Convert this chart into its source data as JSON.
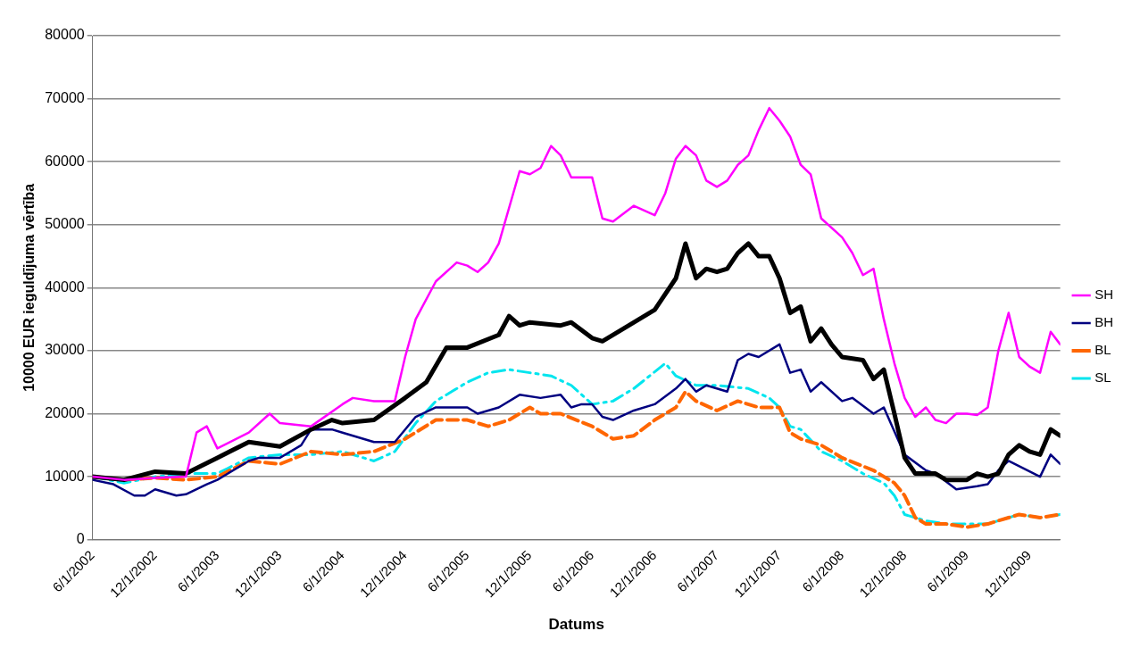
{
  "chart_data": {
    "type": "line",
    "xlabel": "Datums",
    "ylabel": "10000 EUR ieguldījuma vērtība",
    "xlim": [
      "2002-06-01",
      "2010-03-01"
    ],
    "ylim": [
      0,
      80000
    ],
    "yticks": [
      0,
      10000,
      20000,
      30000,
      40000,
      50000,
      60000,
      70000,
      80000
    ],
    "xticks": [
      {
        "value": "2002-06-01",
        "label": "6/1/2002"
      },
      {
        "value": "2002-12-01",
        "label": "12/1/2002"
      },
      {
        "value": "2003-06-01",
        "label": "6/1/2003"
      },
      {
        "value": "2003-12-01",
        "label": "12/1/2003"
      },
      {
        "value": "2004-06-01",
        "label": "6/1/2004"
      },
      {
        "value": "2004-12-01",
        "label": "12/1/2004"
      },
      {
        "value": "2005-06-01",
        "label": "6/1/2005"
      },
      {
        "value": "2005-12-01",
        "label": "12/1/2005"
      },
      {
        "value": "2006-06-01",
        "label": "6/1/2006"
      },
      {
        "value": "2006-12-01",
        "label": "12/1/2006"
      },
      {
        "value": "2007-06-01",
        "label": "6/1/2007"
      },
      {
        "value": "2007-12-01",
        "label": "12/1/2007"
      },
      {
        "value": "2008-06-01",
        "label": "6/1/2008"
      },
      {
        "value": "2008-12-01",
        "label": "12/1/2008"
      },
      {
        "value": "2009-06-01",
        "label": "6/1/2009"
      },
      {
        "value": "2009-12-01",
        "label": "12/1/2009"
      }
    ],
    "grid": "y",
    "legend": "right",
    "marker": "none",
    "series": [
      {
        "name": "SH",
        "color": "#ff00ff",
        "line_style": "solid",
        "x": [
          "2002-06",
          "2002-09",
          "2002-12",
          "2003-03",
          "2003-04",
          "2003-05",
          "2003-06",
          "2003-09",
          "2003-11",
          "2003-12",
          "2004-03",
          "2004-06",
          "2004-07",
          "2004-09",
          "2004-11",
          "2004-12",
          "2005-01",
          "2005-03",
          "2005-05",
          "2005-06",
          "2005-07",
          "2005-08",
          "2005-09",
          "2005-11",
          "2005-12",
          "2006-01",
          "2006-02",
          "2006-03",
          "2006-04",
          "2006-06",
          "2006-07",
          "2006-08",
          "2006-10",
          "2006-12",
          "2007-01",
          "2007-02",
          "2007-03",
          "2007-04",
          "2007-05",
          "2007-06",
          "2007-07",
          "2007-08",
          "2007-09",
          "2007-10",
          "2007-11",
          "2007-12",
          "2008-01",
          "2008-02",
          "2008-03",
          "2008-04",
          "2008-06",
          "2008-07",
          "2008-08",
          "2008-09",
          "2008-10",
          "2008-11",
          "2008-12",
          "2009-01",
          "2009-02",
          "2009-03",
          "2009-04",
          "2009-05",
          "2009-06",
          "2009-07",
          "2009-08",
          "2009-09",
          "2009-10",
          "2009-11",
          "2009-12",
          "2010-01",
          "2010-02",
          "2010-03"
        ],
        "values": [
          10000,
          9500,
          9800,
          10000,
          17000,
          18000,
          14500,
          17000,
          20000,
          18500,
          18000,
          21500,
          22500,
          22000,
          22000,
          29000,
          35000,
          41000,
          44000,
          43500,
          42500,
          44000,
          47000,
          58500,
          58000,
          59000,
          62500,
          61000,
          57500,
          57500,
          51000,
          50500,
          53000,
          51500,
          55000,
          60500,
          62500,
          61000,
          57000,
          56000,
          57000,
          59500,
          61000,
          65000,
          68500,
          66500,
          64000,
          59500,
          58000,
          51000,
          48000,
          45500,
          42000,
          43000,
          35000,
          28000,
          22500,
          19500,
          21000,
          19000,
          18500,
          20000,
          20000,
          19800,
          21000,
          30000,
          36000,
          29000,
          27500,
          26500,
          33000,
          31000
        ]
      },
      {
        "color": "#000000",
        "line_style": "solid",
        "x": [
          "2002-06",
          "2002-09",
          "2002-12",
          "2003-03",
          "2003-06",
          "2003-09",
          "2003-12",
          "2004-03",
          "2004-05",
          "2004-06",
          "2004-09",
          "2004-12",
          "2005-02",
          "2005-04",
          "2005-06",
          "2005-09",
          "2005-10",
          "2005-11",
          "2005-12",
          "2006-03",
          "2006-04",
          "2006-06",
          "2006-07",
          "2006-09",
          "2006-12",
          "2007-02",
          "2007-03",
          "2007-04",
          "2007-05",
          "2007-06",
          "2007-07",
          "2007-08",
          "2007-09",
          "2007-10",
          "2007-11",
          "2007-12",
          "2008-01",
          "2008-02",
          "2008-03",
          "2008-04",
          "2008-05",
          "2008-06",
          "2008-08",
          "2008-09",
          "2008-10",
          "2008-11",
          "2008-12",
          "2009-01",
          "2009-03",
          "2009-04",
          "2009-06",
          "2009-07",
          "2009-08",
          "2009-09",
          "2009-10",
          "2009-11",
          "2009-12",
          "2010-01",
          "2010-02",
          "2010-03"
        ],
        "values": [
          10000,
          9500,
          10800,
          10500,
          13000,
          15500,
          14800,
          17500,
          19000,
          18500,
          19000,
          22500,
          25000,
          30500,
          30500,
          32500,
          35500,
          34000,
          34500,
          34000,
          34500,
          32000,
          31500,
          33500,
          36500,
          41500,
          47000,
          41500,
          43000,
          42500,
          43000,
          45500,
          47000,
          45000,
          45000,
          41500,
          36000,
          37000,
          31500,
          33500,
          31000,
          29000,
          28500,
          25500,
          27000,
          20000,
          13000,
          10500,
          10500,
          9500,
          9500,
          10500,
          10000,
          10500,
          13500,
          15000,
          14000,
          13500,
          17500,
          16500
        ]
      },
      {
        "name": "BH",
        "color": "#000080",
        "line_style": "solid",
        "x": [
          "2002-06",
          "2002-08",
          "2002-10",
          "2002-11",
          "2002-12",
          "2003-02",
          "2003-03",
          "2003-05",
          "2003-06",
          "2003-09",
          "2003-10",
          "2003-12",
          "2004-02",
          "2004-03",
          "2004-05",
          "2004-06",
          "2004-09",
          "2004-11",
          "2005-01",
          "2005-03",
          "2005-05",
          "2005-06",
          "2005-07",
          "2005-09",
          "2005-11",
          "2006-01",
          "2006-03",
          "2006-04",
          "2006-05",
          "2006-06",
          "2006-07",
          "2006-08",
          "2006-10",
          "2006-12",
          "2007-02",
          "2007-03",
          "2007-04",
          "2007-05",
          "2007-07",
          "2007-08",
          "2007-09",
          "2007-10",
          "2007-12",
          "2008-01",
          "2008-02",
          "2008-03",
          "2008-04",
          "2008-06",
          "2008-07",
          "2008-09",
          "2008-10",
          "2008-12",
          "2009-02",
          "2009-03",
          "2009-05",
          "2009-07",
          "2009-08",
          "2009-09",
          "2009-10",
          "2010-01",
          "2010-02",
          "2010-03"
        ],
        "values": [
          9500,
          8800,
          7000,
          7000,
          8000,
          7000,
          7200,
          8800,
          9500,
          12500,
          13000,
          13000,
          15000,
          17500,
          17500,
          17000,
          15500,
          15500,
          19500,
          21000,
          21000,
          21000,
          20000,
          21000,
          23000,
          22500,
          23000,
          21000,
          21500,
          21500,
          19500,
          19000,
          20500,
          21500,
          24000,
          25500,
          23500,
          24500,
          23500,
          28500,
          29500,
          29000,
          31000,
          26500,
          27000,
          23500,
          25000,
          22000,
          22500,
          20000,
          21000,
          13500,
          11000,
          10500,
          8000,
          8500,
          8800,
          11000,
          12500,
          10000,
          13500,
          12000
        ]
      },
      {
        "name": "BL",
        "color": "#ff6600",
        "line_style": "dashed",
        "x": [
          "2002-06",
          "2002-09",
          "2002-12",
          "2003-03",
          "2003-06",
          "2003-09",
          "2003-12",
          "2004-03",
          "2004-06",
          "2004-09",
          "2004-12",
          "2005-03",
          "2005-06",
          "2005-08",
          "2005-10",
          "2005-12",
          "2006-01",
          "2006-03",
          "2006-06",
          "2006-08",
          "2006-10",
          "2006-12",
          "2007-02",
          "2007-03",
          "2007-04",
          "2007-06",
          "2007-08",
          "2007-10",
          "2007-12",
          "2008-01",
          "2008-02",
          "2008-04",
          "2008-06",
          "2008-09",
          "2008-11",
          "2008-12",
          "2009-01",
          "2009-02",
          "2009-04",
          "2009-06",
          "2009-08",
          "2009-10",
          "2009-11",
          "2010-01",
          "2010-03"
        ],
        "values": [
          10000,
          9500,
          9800,
          9500,
          10000,
          12500,
          12000,
          14000,
          13500,
          14000,
          16000,
          19000,
          19000,
          18000,
          19000,
          21000,
          20000,
          20000,
          18000,
          16000,
          16500,
          19000,
          21000,
          23500,
          22000,
          20500,
          22000,
          21000,
          21000,
          17000,
          16000,
          15000,
          13000,
          11000,
          9000,
          7000,
          3500,
          2500,
          2500,
          2000,
          2500,
          3500,
          4000,
          3500,
          4000
        ]
      },
      {
        "name": "SL",
        "color": "#00e5ee",
        "line_style": "dashdot",
        "x": [
          "2002-06",
          "2002-09",
          "2002-12",
          "2003-03",
          "2003-06",
          "2003-09",
          "2003-12",
          "2004-03",
          "2004-06",
          "2004-08",
          "2004-09",
          "2004-11",
          "2005-01",
          "2005-03",
          "2005-06",
          "2005-08",
          "2005-10",
          "2005-12",
          "2006-02",
          "2006-04",
          "2006-06",
          "2006-08",
          "2006-10",
          "2007-01",
          "2007-02",
          "2007-04",
          "2007-06",
          "2007-09",
          "2007-11",
          "2007-12",
          "2008-01",
          "2008-02",
          "2008-04",
          "2008-06",
          "2008-08",
          "2008-10",
          "2008-11",
          "2008-12",
          "2009-02",
          "2009-04",
          "2009-06",
          "2009-08",
          "2009-10",
          "2009-11",
          "2010-01",
          "2010-03"
        ],
        "values": [
          10000,
          9000,
          10000,
          10500,
          10500,
          13000,
          13500,
          13500,
          14000,
          13000,
          12500,
          14000,
          18500,
          22000,
          25000,
          26500,
          27000,
          26500,
          26000,
          24500,
          21500,
          22000,
          24000,
          28000,
          26000,
          24500,
          24500,
          24000,
          22500,
          21000,
          18000,
          17500,
          14000,
          12500,
          10500,
          9000,
          7000,
          4000,
          3000,
          2500,
          2500,
          2500,
          3500,
          4000,
          3500,
          4000
        ]
      }
    ]
  }
}
